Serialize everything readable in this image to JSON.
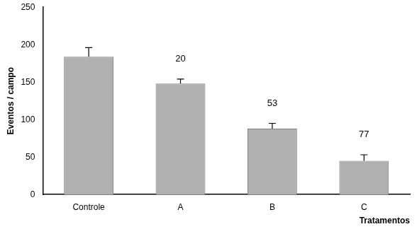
{
  "chart_data": {
    "type": "bar",
    "categories": [
      "Controle",
      "A",
      "B",
      "C"
    ],
    "values": [
      184,
      148,
      88,
      45
    ],
    "errors": [
      12,
      6,
      7,
      8
    ],
    "annotations": [
      null,
      20,
      53,
      77
    ],
    "color": "#b0b0b0",
    "x_label": "Tratamentos",
    "y_label": "Eventos / campo",
    "ylim": [
      0,
      250
    ],
    "yticks": [
      0,
      50,
      100,
      150,
      200,
      250
    ],
    "grid": false
  }
}
